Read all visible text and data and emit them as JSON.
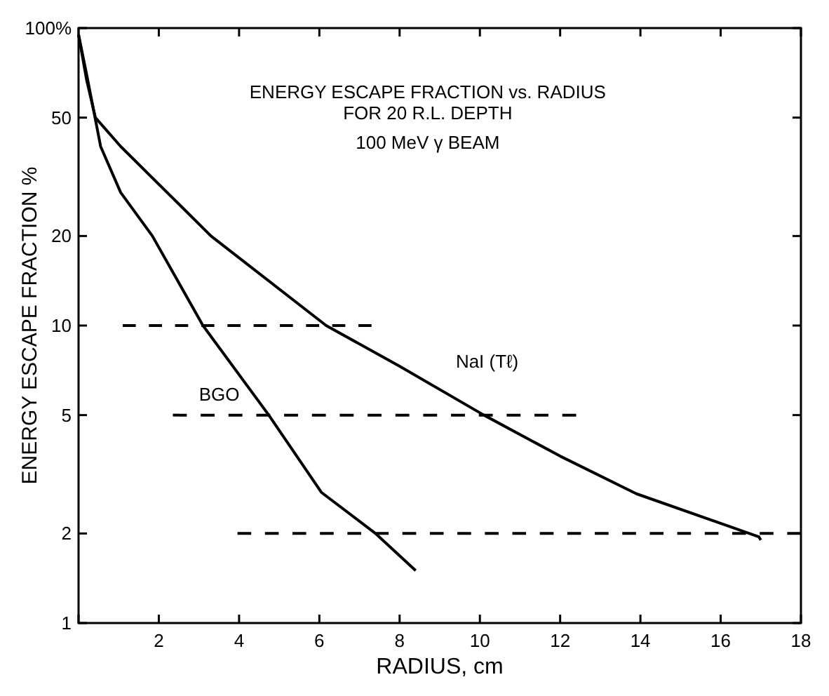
{
  "chart_data": {
    "type": "line",
    "title": "ENERGY ESCAPE FRACTION vs. RADIUS",
    "subtitle": "FOR 20 R.L. DEPTH",
    "xlabel": "RADIUS, cm",
    "ylabel": "ENERGY ESCAPE FRACTION %",
    "log": "y",
    "grid": false,
    "marker": "none",
    "xlim": [
      0,
      18
    ],
    "xticks": [
      {
        "value": 0,
        "label": null
      },
      2,
      4,
      6,
      8,
      10,
      12,
      14,
      16,
      18
    ],
    "ylim": [
      1,
      100
    ],
    "yticks": [
      1,
      2,
      5,
      10,
      20,
      50,
      {
        "value": 100,
        "label": "100%"
      }
    ],
    "annotations": [
      "100 MeV γ BEAM",
      "BGO",
      "NaI (Tℓ)"
    ],
    "series": [
      {
        "color": "#000000",
        "line_style": "solid",
        "x": [
          0,
          0.2,
          0.55,
          1.05,
          1.84,
          3.1,
          4.74,
          6.05,
          7.4,
          8.4
        ],
        "values": [
          95,
          70,
          40,
          28,
          20,
          10,
          5,
          2.75,
          2,
          1.5
        ]
      },
      {
        "color": "#000000",
        "line_style": "solid",
        "x": [
          0,
          0.2,
          0.42,
          1.05,
          3.3,
          6.17,
          8,
          10.1,
          12,
          13.9,
          16.95,
          17
        ],
        "values": [
          95,
          67,
          50,
          40,
          20,
          10,
          7.3,
          5,
          3.64,
          2.72,
          1.95,
          1.9
        ]
      },
      {
        "color": "#000000",
        "line_style": "dashed",
        "x": [
          1.1,
          7.3
        ],
        "values": [
          10,
          10
        ]
      },
      {
        "color": "#000000",
        "line_style": "dashed",
        "x": [
          2.35,
          12.4
        ],
        "values": [
          5,
          5
        ]
      },
      {
        "color": "#000000",
        "line_style": "dashed",
        "x": [
          3.96,
          18
        ],
        "values": [
          2,
          2
        ]
      }
    ]
  }
}
